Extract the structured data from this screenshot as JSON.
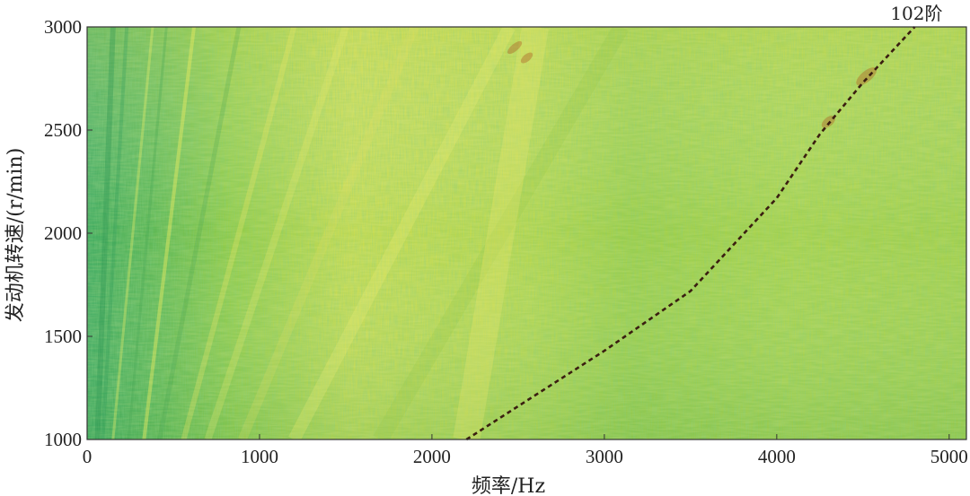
{
  "chart_data": {
    "type": "heatmap",
    "title": "",
    "xlabel": "频率/Hz",
    "ylabel": "发动机转速/(r/min)",
    "xlim": [
      0,
      5100
    ],
    "ylim": [
      1000,
      3000
    ],
    "xticks": [
      0,
      1000,
      2000,
      3000,
      4000,
      5000
    ],
    "yticks": [
      1000,
      1500,
      2000,
      2500,
      3000
    ],
    "xtick_labels": [
      "0",
      "1000",
      "2000",
      "3000",
      "4000",
      "5000"
    ],
    "ytick_labels": [
      "1000",
      "1500",
      "2000",
      "2500",
      "3000"
    ],
    "order_lines": [
      {
        "label": "102阶",
        "style": "dashed",
        "points": [
          {
            "x": 2200,
            "y": 1000
          },
          {
            "x": 3000,
            "y": 1430
          },
          {
            "x": 3500,
            "y": 1720
          },
          {
            "x": 4000,
            "y": 2170
          },
          {
            "x": 4250,
            "y": 2480
          },
          {
            "x": 4500,
            "y": 2730
          },
          {
            "x": 4800,
            "y": 3000
          }
        ]
      }
    ],
    "colors": {
      "colormap_low": "#3aa85c",
      "colormap_mid": "#8cc83e",
      "colormap_high": "#dede55",
      "hot": "#b06a2a",
      "order_line": "#3a1e10"
    },
    "grid": false,
    "legend": "none"
  }
}
